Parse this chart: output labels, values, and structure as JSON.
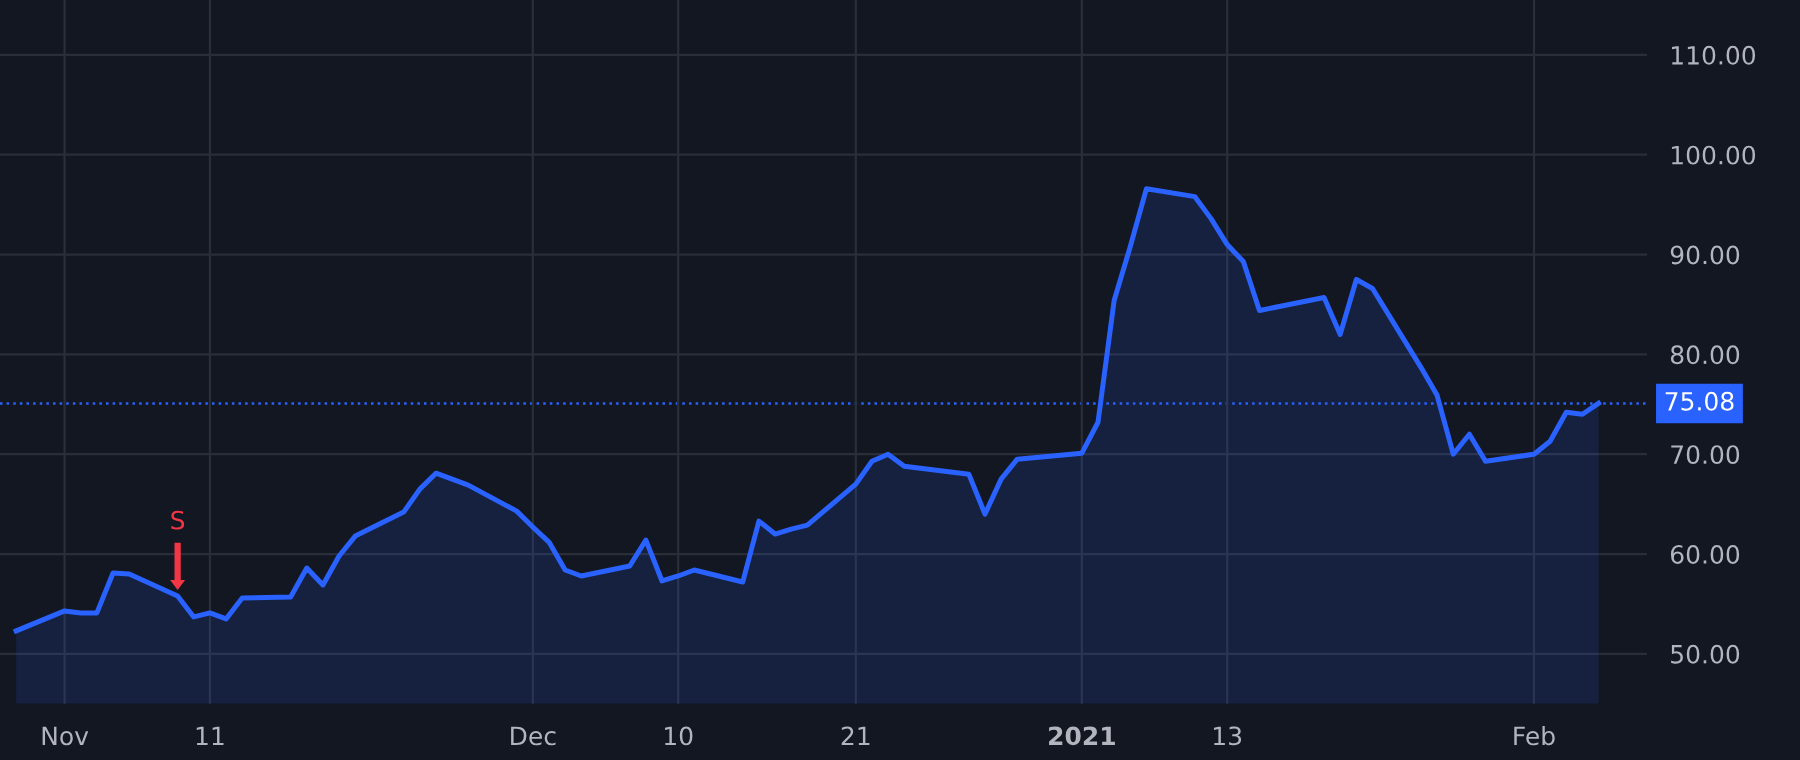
{
  "chart_data": {
    "type": "area",
    "x": [
      "2020-10-30",
      "2020-11-02",
      "2020-11-03",
      "2020-11-04",
      "2020-11-05",
      "2020-11-06",
      "2020-11-09",
      "2020-11-10",
      "2020-11-11",
      "2020-11-12",
      "2020-11-13",
      "2020-11-16",
      "2020-11-17",
      "2020-11-18",
      "2020-11-19",
      "2020-11-20",
      "2020-11-23",
      "2020-11-24",
      "2020-11-25",
      "2020-11-27",
      "2020-11-30",
      "2020-12-01",
      "2020-12-02",
      "2020-12-03",
      "2020-12-04",
      "2020-12-07",
      "2020-12-08",
      "2020-12-09",
      "2020-12-10",
      "2020-12-11",
      "2020-12-14",
      "2020-12-15",
      "2020-12-16",
      "2020-12-17",
      "2020-12-18",
      "2020-12-21",
      "2020-12-22",
      "2020-12-23",
      "2020-12-24",
      "2020-12-28",
      "2020-12-29",
      "2020-12-30",
      "2020-12-31",
      "2021-01-04",
      "2021-01-05",
      "2021-01-06",
      "2021-01-07",
      "2021-01-08",
      "2021-01-11",
      "2021-01-12",
      "2021-01-13",
      "2021-01-14",
      "2021-01-15",
      "2021-01-19",
      "2021-01-20",
      "2021-01-21",
      "2021-01-22",
      "2021-01-25",
      "2021-01-26",
      "2021-01-27",
      "2021-01-28",
      "2021-01-29",
      "2021-02-01",
      "2021-02-02",
      "2021-02-03",
      "2021-02-04",
      "2021-02-05"
    ],
    "series": [
      {
        "color": "#2962ff",
        "values": [
          52.3,
          54.3,
          54.1,
          54.1,
          58.1,
          58.0,
          55.8,
          53.7,
          54.1,
          53.5,
          55.6,
          55.7,
          58.6,
          56.9,
          59.8,
          61.8,
          64.2,
          66.5,
          68.1,
          66.9,
          64.3,
          62.7,
          61.2,
          58.4,
          57.8,
          58.8,
          61.4,
          57.3,
          57.8,
          58.4,
          57.2,
          63.3,
          62.0,
          62.5,
          62.9,
          67.0,
          69.3,
          70.0,
          68.8,
          68.0,
          64.0,
          67.5,
          69.5,
          70.1,
          73.2,
          85.4,
          90.8,
          96.6,
          95.8,
          93.6,
          91.0,
          89.3,
          84.4,
          85.7,
          82.0,
          87.5,
          86.6,
          78.7,
          75.9,
          70.0,
          72.0,
          69.3,
          70.0,
          71.3,
          74.2,
          74.0,
          75.1
        ]
      }
    ],
    "xlim": [
      "2020-10-29",
      "2021-02-08"
    ],
    "xticks": [
      {
        "value": "2020-11-02",
        "label": "Nov"
      },
      {
        "value": "2020-11-11",
        "label": "11"
      },
      {
        "value": "2020-12-01",
        "label": "Dec"
      },
      {
        "value": "2020-12-10",
        "label": "10"
      },
      {
        "value": "2020-12-21",
        "label": "21"
      },
      {
        "value": "2021-01-04",
        "label": "2021"
      },
      {
        "value": "2021-01-13",
        "label": "13"
      },
      {
        "value": "2021-02-01",
        "label": "Feb"
      }
    ],
    "ylim": [
      45,
      115.5
    ],
    "yticks": [
      {
        "value": 50,
        "label": "50.00"
      },
      {
        "value": 60,
        "label": "60.00"
      },
      {
        "value": 70,
        "label": "70.00"
      },
      {
        "value": 80,
        "label": "80.00"
      },
      {
        "value": 90,
        "label": "90.00"
      },
      {
        "value": 100,
        "label": "100.00"
      },
      {
        "value": 110,
        "label": "110.00"
      }
    ],
    "grid": true,
    "ref_lines": [
      {
        "axis": "y",
        "value": 75.08,
        "label": "75.08",
        "color": "#2962ff",
        "line_style": "dotted"
      }
    ],
    "annotations": [
      {
        "text": "S",
        "x": "2020-11-09",
        "y": 56.4
      }
    ]
  }
}
